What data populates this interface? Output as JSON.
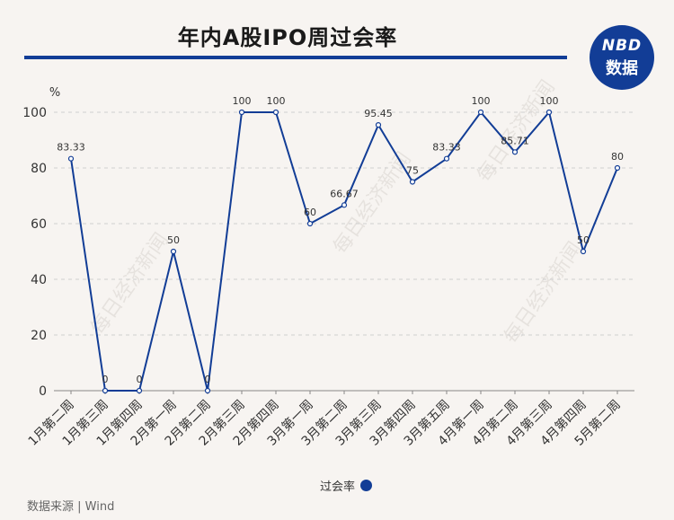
{
  "title": "年内A股IPO周过会率",
  "logo": {
    "top": "NBD",
    "bottom": "数据"
  },
  "source": "数据来源 | Wind",
  "watermark": "每日经济新闻",
  "colors": {
    "line": "#123d96",
    "grid": "#cfcfcf",
    "axis": "#888888"
  },
  "chart_data": {
    "type": "line",
    "title": "年内A股IPO周过会率",
    "ylabel": "%",
    "xlabel": "",
    "ylim": [
      0,
      100
    ],
    "yticks": [
      0,
      20,
      40,
      60,
      80,
      100
    ],
    "grid": true,
    "legend_position": "bottom-center",
    "categories": [
      "1月第二周",
      "1月第三周",
      "1月第四周",
      "2月第一周",
      "2月第二周",
      "2月第三周",
      "2月第四周",
      "3月第一周",
      "3月第二周",
      "3月第三周",
      "3月第四周",
      "3月第五周",
      "4月第一周",
      "4月第二周",
      "4月第三周",
      "4月第四周",
      "5月第二周"
    ],
    "series": [
      {
        "name": "过会率",
        "values": [
          83.33,
          0,
          0,
          50,
          0,
          100,
          100,
          60,
          66.67,
          95.45,
          75,
          83.33,
          100,
          85.71,
          100,
          50,
          80
        ],
        "labels": [
          "83.33",
          "0",
          "0",
          "50",
          "0",
          "100",
          "100",
          "60",
          "66.67",
          "95.45",
          "75",
          "83.33",
          "100",
          "85.71",
          "100",
          "50",
          "80"
        ]
      }
    ]
  }
}
